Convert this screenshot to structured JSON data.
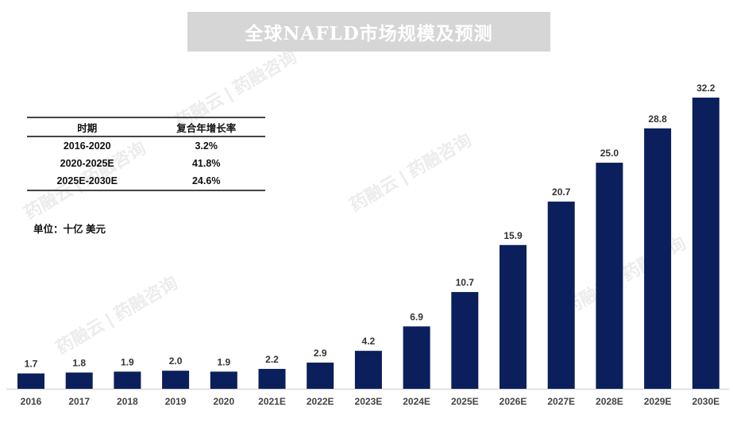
{
  "title": "全球NAFLD市场规模及预测",
  "cagr_table": {
    "headers": [
      "时期",
      "复合年增长率"
    ],
    "rows": [
      [
        "2016-2020",
        "3.2%"
      ],
      [
        "2020-2025E",
        "41.8%"
      ],
      [
        "2025E-2030E",
        "24.6%"
      ]
    ]
  },
  "unit_label": "单位：十亿 美元",
  "watermark": "药融云 | 药融咨询",
  "colors": {
    "bar": "#0b1f5c",
    "title_bg": "#d6d6d6"
  },
  "chart_data": {
    "type": "bar",
    "title": "全球NAFLD市场规模及预测",
    "xlabel": "",
    "ylabel": "",
    "categories": [
      "2016",
      "2017",
      "2018",
      "2019",
      "2020",
      "2021E",
      "2022E",
      "2023E",
      "2024E",
      "2025E",
      "2026E",
      "2027E",
      "2028E",
      "2029E",
      "2030E"
    ],
    "values": [
      1.7,
      1.8,
      1.9,
      2.0,
      1.9,
      2.2,
      2.9,
      4.2,
      6.9,
      10.7,
      15.9,
      20.7,
      25.0,
      28.8,
      32.2
    ],
    "value_labels": [
      "1.7",
      "1.8",
      "1.9",
      "2.0",
      "1.9",
      "2.2",
      "2.9",
      "4.2",
      "6.9",
      "10.7",
      "15.9",
      "20.7",
      "25.0",
      "28.8",
      "32.2"
    ],
    "ylim": [
      0,
      32.2
    ],
    "grid": false,
    "legend": "none"
  }
}
